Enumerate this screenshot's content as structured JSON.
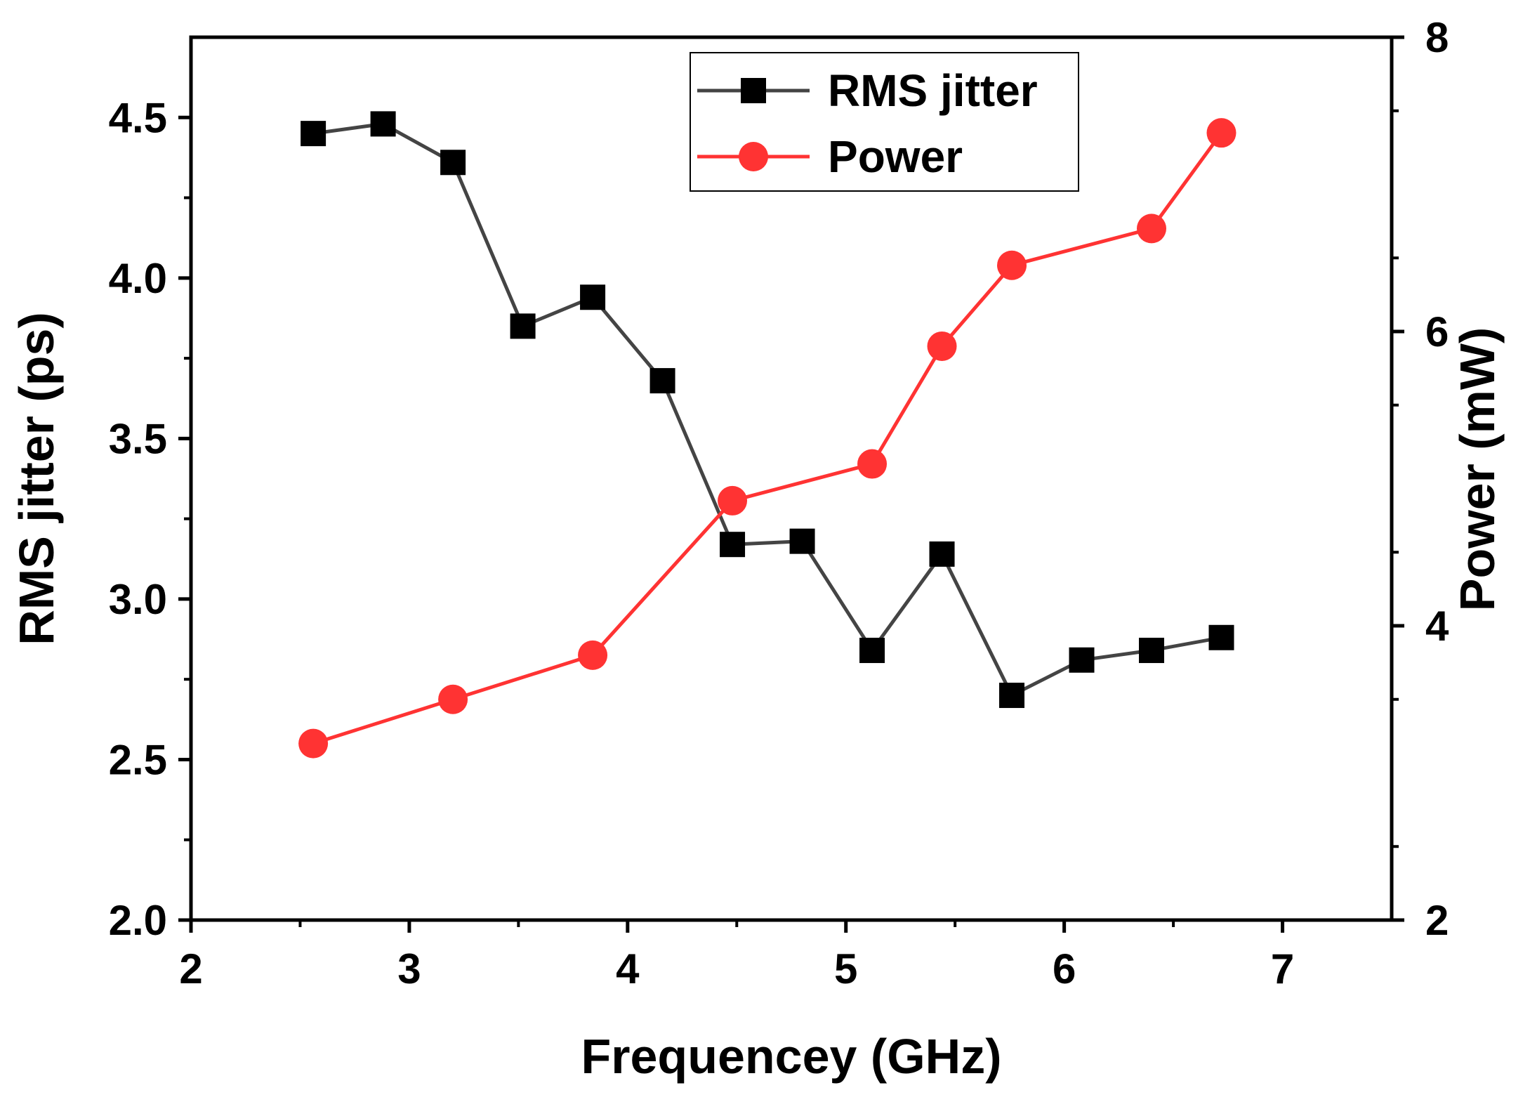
{
  "chart_data": {
    "type": "line",
    "xlabel": "Frequencey (GHz)",
    "ylabel": "RMS jitter (ps)",
    "y2label": "Power (mW)",
    "xlim": [
      2,
      7.5
    ],
    "ylim": [
      2.0,
      4.75
    ],
    "y2lim": [
      2,
      8
    ],
    "x_ticks": [
      2,
      3,
      4,
      5,
      6,
      7
    ],
    "y_ticks": [
      2.0,
      2.5,
      3.0,
      3.5,
      4.0,
      4.5
    ],
    "y_tick_labels": [
      "2.0",
      "2.5",
      "3.0",
      "3.5",
      "4.0",
      "4.5"
    ],
    "y2_ticks": [
      2,
      4,
      6,
      8
    ],
    "legend_position": "top-center",
    "series": [
      {
        "name": "RMS jitter",
        "axis": "left",
        "color": "#444444",
        "marker": "square",
        "x": [
          2.56,
          2.88,
          3.2,
          3.52,
          3.84,
          4.16,
          4.48,
          4.8,
          5.12,
          5.44,
          5.76,
          6.08,
          6.4,
          6.72
        ],
        "y": [
          4.45,
          4.48,
          4.36,
          3.85,
          3.94,
          3.68,
          3.17,
          3.18,
          2.84,
          3.14,
          2.7,
          2.81,
          2.84,
          2.88
        ]
      },
      {
        "name": "Power",
        "axis": "right",
        "color": "#ff3333",
        "marker": "circle",
        "x": [
          2.56,
          3.2,
          3.84,
          4.48,
          5.12,
          5.44,
          5.76,
          6.4,
          6.72
        ],
        "y": [
          3.2,
          3.5,
          3.8,
          4.85,
          5.1,
          5.9,
          6.45,
          6.7,
          7.35
        ]
      }
    ]
  }
}
